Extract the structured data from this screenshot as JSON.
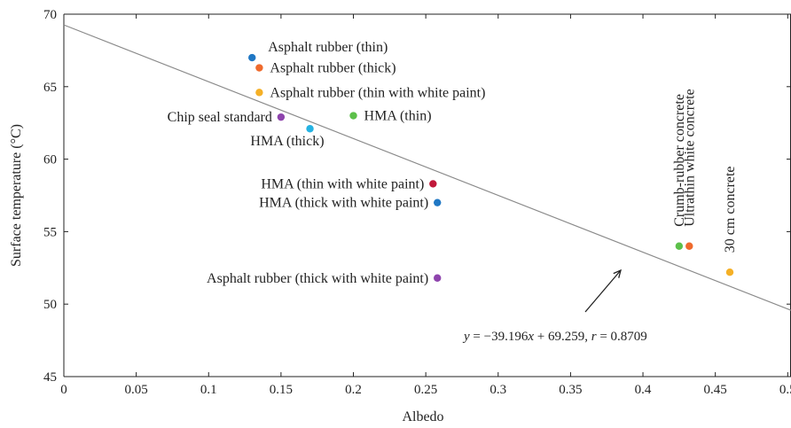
{
  "chart_data": {
    "type": "scatter",
    "xlabel": "Albedo",
    "ylabel": "Surface temperature (°C)",
    "xlim": [
      0,
      0.51
    ],
    "ylim": [
      45,
      70
    ],
    "xticks": [
      "0",
      "0.05",
      "0.1",
      "0.15",
      "0.2",
      "0.25",
      "0.3",
      "0.35",
      "0.4",
      "0.45",
      "0.5"
    ],
    "yticks": [
      "45",
      "50",
      "55",
      "60",
      "65",
      "70"
    ],
    "grid": false,
    "points": [
      {
        "label": "Asphalt rubber (thin)",
        "x": 0.13,
        "y": 67.0,
        "color": "#1f77c4",
        "label_pos": "right-up"
      },
      {
        "label": "Asphalt rubber (thick)",
        "x": 0.135,
        "y": 66.3,
        "color": "#ef6a2c",
        "label_pos": "right"
      },
      {
        "label": "Asphalt rubber (thin with white paint)",
        "x": 0.135,
        "y": 64.6,
        "color": "#f5b026",
        "label_pos": "right"
      },
      {
        "label": "Chip seal standard",
        "x": 0.15,
        "y": 62.9,
        "color": "#8e44ad",
        "label_pos": "left"
      },
      {
        "label": "HMA (thin)",
        "x": 0.2,
        "y": 63.0,
        "color": "#5cc04a",
        "label_pos": "right"
      },
      {
        "label": "HMA (thick)",
        "x": 0.17,
        "y": 62.1,
        "color": "#24b3e3",
        "label_pos": "below-left"
      },
      {
        "label": "HMA (thin with white paint)",
        "x": 0.255,
        "y": 58.3,
        "color": "#c0183a",
        "label_pos": "left"
      },
      {
        "label": "HMA (thick with white paint)",
        "x": 0.258,
        "y": 57.0,
        "color": "#1f77c4",
        "label_pos": "left"
      },
      {
        "label": "Asphalt rubber (thick with white paint)",
        "x": 0.258,
        "y": 51.8,
        "color": "#8e44ad",
        "label_pos": "left"
      },
      {
        "label": "Crumb-rubber concrete",
        "x": 0.425,
        "y": 54.0,
        "color": "#5cc04a",
        "label_pos": "above-vertical"
      },
      {
        "label": "Ultrathin white concrete",
        "x": 0.432,
        "y": 54.0,
        "color": "#ef6a2c",
        "label_pos": "above-vertical"
      },
      {
        "label": "30 cm concrete",
        "x": 0.46,
        "y": 52.2,
        "color": "#f5b026",
        "label_pos": "above-vertical"
      }
    ],
    "fit_line": {
      "slope": -39.196,
      "intercept": 69.259,
      "color": "#8a8a8a"
    },
    "annotation": {
      "text_pre": "y",
      "text_mid1": " = −39.196",
      "text_x": "x",
      "text_mid2": " + 69.259, ",
      "text_r": "r",
      "text_end": " = 0.8709"
    }
  }
}
